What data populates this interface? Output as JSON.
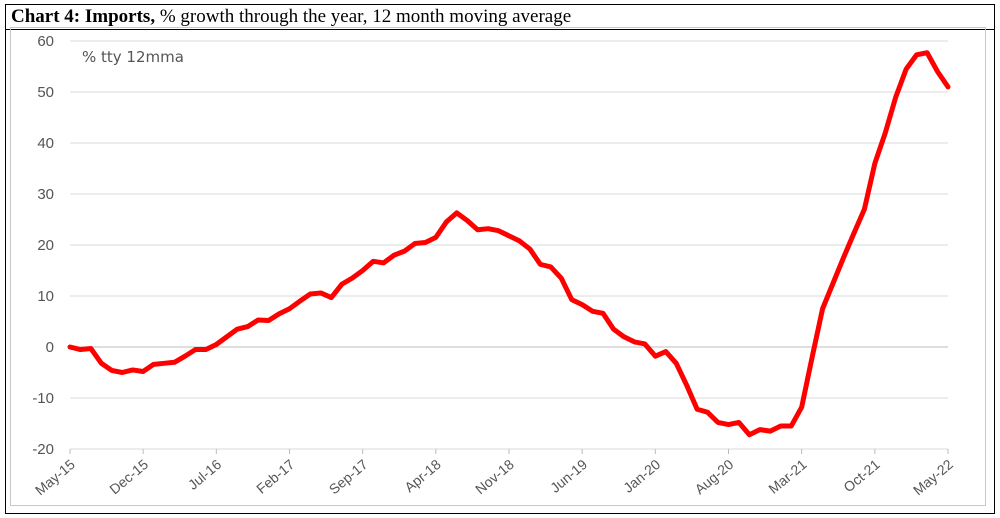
{
  "title": {
    "bold": "Chart 4: Imports,",
    "rest": " % growth through the year, 12 month moving average"
  },
  "chart_data": {
    "type": "line",
    "annotation": "% tty 12mma",
    "ylim": [
      -20,
      60
    ],
    "y_ticks": [
      60,
      50,
      40,
      30,
      20,
      10,
      0,
      -10,
      -20
    ],
    "x_tick_labels": [
      "May-15",
      "Dec-15",
      "Jul-16",
      "Feb-17",
      "Sep-17",
      "Apr-18",
      "Nov-18",
      "Jun-19",
      "Jan-20",
      "Aug-20",
      "Mar-21",
      "Oct-21",
      "May-22"
    ],
    "grid": true,
    "line_color": "#ff0000",
    "x_start": "May-15",
    "x_end": "May-22",
    "series": [
      {
        "values": [
          0.0,
          -0.5,
          -0.3,
          -3.2,
          -4.6,
          -5.0,
          -4.5,
          -4.8,
          -3.4,
          -3.2,
          -3.0,
          -1.8,
          -0.5,
          -0.5,
          0.5,
          2.0,
          3.5,
          4.0,
          5.3,
          5.2,
          6.5,
          7.5,
          9.0,
          10.4,
          10.6,
          9.7,
          12.3,
          13.5,
          15.0,
          16.8,
          16.5,
          18.0,
          18.8,
          20.3,
          20.5,
          21.5,
          24.5,
          26.3,
          24.8,
          23.0,
          23.2,
          22.8,
          21.8,
          20.8,
          19.2,
          16.2,
          15.7,
          13.5,
          9.3,
          8.3,
          7.0,
          6.6,
          3.5,
          2.0,
          1.0,
          0.6,
          -1.8,
          -0.9,
          -3.2,
          -7.5,
          -12.2,
          -12.8,
          -14.8,
          -15.2,
          -14.8,
          -17.2,
          -16.2,
          -16.5,
          -15.5,
          -15.5,
          -11.8,
          -2.0,
          7.5,
          12.5,
          17.5,
          22.3,
          27.0,
          36.0,
          42.0,
          49.0,
          54.5,
          57.3,
          57.7,
          54.0,
          51.0
        ]
      }
    ]
  }
}
